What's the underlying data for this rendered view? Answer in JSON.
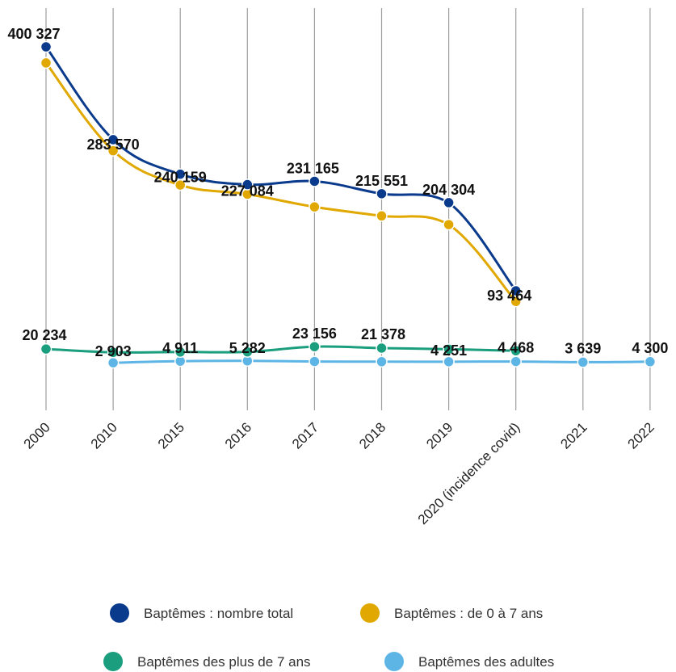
{
  "chart_data": {
    "type": "line",
    "title": "",
    "xlabel": "",
    "ylabel": "",
    "categories": [
      "2000",
      "2010",
      "2015",
      "2016",
      "2017",
      "2018",
      "2019",
      "2020 (incidence covid)",
      "2021",
      "2022"
    ],
    "ylim": [
      0,
      430000
    ],
    "grid": {
      "vertical": true,
      "horizontal": false
    },
    "legend": "bottom",
    "series": [
      {
        "name": "Baptêmes : nombre total",
        "color": "#0a3a8c",
        "values": [
          400327,
          283570,
          240159,
          227084,
          231165,
          215551,
          204304,
          93464,
          null,
          null
        ],
        "labels": [
          "400 327",
          "283 570",
          "240 159",
          "227 084",
          "231 165",
          "215 551",
          "204 304",
          "93 464",
          "",
          ""
        ]
      },
      {
        "name": "Baptêmes : de 0 à 7 ans",
        "color": "#e0a800",
        "values": [
          380093,
          269600,
          226500,
          215000,
          199000,
          187700,
          176700,
          80000,
          null,
          null
        ],
        "labels": [
          "",
          "",
          "",
          "",
          "",
          "",
          "",
          "",
          "",
          ""
        ]
      },
      {
        "name": "Baptêmes des plus de 7 ans",
        "color": "#1a9e7e",
        "values": [
          20234,
          16000,
          16500,
          16600,
          23156,
          21378,
          20000,
          18000,
          null,
          null
        ],
        "labels": [
          "20 234",
          "",
          "",
          "",
          "23 156",
          "21 378",
          "",
          "",
          "",
          ""
        ]
      },
      {
        "name": "Baptêmes des adultes",
        "color": "#5db5e6",
        "values": [
          null,
          2903,
          4911,
          5282,
          4500,
          4300,
          4251,
          4468,
          3639,
          4300
        ],
        "labels": [
          "",
          "2 903",
          "4 911",
          "5 282",
          "",
          "",
          "4 251",
          "4 468",
          "3 639",
          "4 300"
        ]
      }
    ]
  }
}
